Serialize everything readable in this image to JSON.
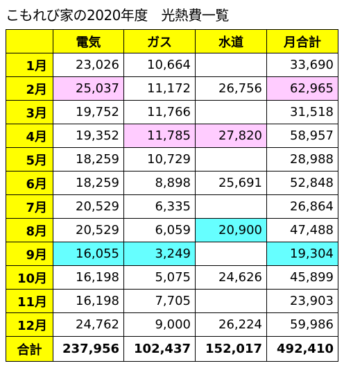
{
  "title": "こもれび家の2020年度　光熱費一覧",
  "headers": [
    "電気",
    "ガス",
    "水道",
    "月合計"
  ],
  "colors": {
    "header_bg": "#ffff00",
    "highlight_pink": "#ffccff",
    "highlight_cyan": "#66ffff"
  },
  "rows": [
    {
      "month": "1月",
      "electric": "23,026",
      "gas": "10,664",
      "water": "",
      "total": "33,690"
    },
    {
      "month": "2月",
      "electric": "25,037",
      "gas": "11,172",
      "water": "26,756",
      "total": "62,965"
    },
    {
      "month": "3月",
      "electric": "19,752",
      "gas": "11,766",
      "water": "",
      "total": "31,518"
    },
    {
      "month": "4月",
      "electric": "19,352",
      "gas": "11,785",
      "water": "27,820",
      "total": "58,957"
    },
    {
      "month": "5月",
      "electric": "18,259",
      "gas": "10,729",
      "water": "",
      "total": "28,988"
    },
    {
      "month": "6月",
      "electric": "18,259",
      "gas": "8,898",
      "water": "25,691",
      "total": "52,848"
    },
    {
      "month": "7月",
      "electric": "20,529",
      "gas": "6,335",
      "water": "",
      "total": "26,864"
    },
    {
      "month": "8月",
      "electric": "20,529",
      "gas": "6,059",
      "water": "20,900",
      "total": "47,488"
    },
    {
      "month": "9月",
      "electric": "16,055",
      "gas": "3,249",
      "water": "",
      "total": "19,304"
    },
    {
      "month": "10月",
      "electric": "16,198",
      "gas": "5,075",
      "water": "24,626",
      "total": "45,899"
    },
    {
      "month": "11月",
      "electric": "16,198",
      "gas": "7,705",
      "water": "",
      "total": "23,903"
    },
    {
      "month": "12月",
      "electric": "24,762",
      "gas": "9,000",
      "water": "26,224",
      "total": "59,986"
    }
  ],
  "total": {
    "label": "合計",
    "electric": "237,956",
    "gas": "102,437",
    "water": "152,017",
    "total": "492,410"
  }
}
